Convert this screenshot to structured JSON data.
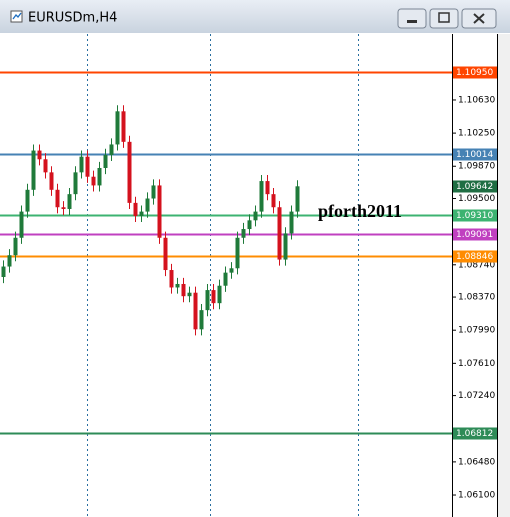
{
  "chart_data": {
    "type": "candlestick",
    "title": "EURUSDm,H4",
    "up_color": "#1f7a3a",
    "down_color": "#d4121e",
    "ylim": [
      1.05848,
      1.11375
    ],
    "yticks": [
      {
        "value": 1.1063,
        "label": "1.10630"
      },
      {
        "value": 1.1025,
        "label": "1.10250"
      },
      {
        "value": 1.0987,
        "label": "1.09870"
      },
      {
        "value": 1.095,
        "label": "1.09500"
      },
      {
        "value": 1.0874,
        "label": "1.08740"
      },
      {
        "value": 1.0837,
        "label": "1.08370"
      },
      {
        "value": 1.0799,
        "label": "1.07990"
      },
      {
        "value": 1.0761,
        "label": "1.07610"
      },
      {
        "value": 1.0724,
        "label": "1.07240"
      },
      {
        "value": 1.0648,
        "label": "1.06480"
      },
      {
        "value": 1.061,
        "label": "1.06100"
      }
    ],
    "levels": [
      {
        "value": 1.1095,
        "label": "1.10950",
        "color": "#ff4500"
      },
      {
        "value": 1.10014,
        "label": "1.10014",
        "color": "#4682b4"
      },
      {
        "value": 1.0931,
        "label": "1.09310",
        "color": "#3cb371"
      },
      {
        "value": 1.09091,
        "label": "1.09091",
        "color": "#c040c0"
      },
      {
        "value": 1.08846,
        "label": "1.08846",
        "color": "#ff8c00"
      },
      {
        "value": 1.06812,
        "label": "1.06812",
        "color": "#2e8b57"
      }
    ],
    "current_price": {
      "value": 1.09642,
      "label": "1.09642",
      "color": "#1f6e43"
    },
    "annotation": "pforth2011",
    "open": [
      1.086,
      1.0872,
      1.0885,
      1.0905,
      1.0935,
      1.096,
      1.1005,
      1.0995,
      1.098,
      1.096,
      1.094,
      1.0938,
      1.0955,
      1.098,
      1.0998,
      1.0975,
      1.0965,
      1.0985,
      1.1,
      1.1012,
      1.105,
      1.1015,
      1.0945,
      1.093,
      1.0935,
      1.095,
      1.0965,
      1.0905,
      1.0868,
      1.0848,
      1.0852,
      1.0838,
      1.0842,
      1.08,
      1.0822,
      1.0845,
      1.083,
      1.085,
      1.0865,
      1.087,
      1.0905,
      1.0915,
      1.0925,
      1.0935,
      1.097,
      1.0955,
      1.094,
      1.088,
      1.091,
      1.0935
    ],
    "high": [
      1.0879,
      1.0892,
      1.0912,
      1.0942,
      1.0967,
      1.1012,
      1.1012,
      1.1002,
      1.0987,
      1.0967,
      1.0947,
      1.0962,
      1.0987,
      1.1005,
      1.1005,
      1.0982,
      1.0992,
      1.1007,
      1.1019,
      1.1057,
      1.1057,
      1.1022,
      1.0952,
      1.0942,
      1.0957,
      1.0972,
      1.0972,
      1.0912,
      1.0875,
      1.0859,
      1.0859,
      1.0849,
      1.0849,
      1.0829,
      1.0852,
      1.0852,
      1.0857,
      1.0872,
      1.0877,
      1.0912,
      1.0922,
      1.0932,
      1.0942,
      1.0977,
      1.0977,
      1.0962,
      1.0947,
      1.0917,
      1.0942,
      1.0971
    ],
    "low": [
      1.0853,
      1.0865,
      1.0878,
      1.0898,
      1.0928,
      1.0953,
      1.0988,
      1.0973,
      1.0953,
      1.0933,
      1.0931,
      1.0931,
      1.0948,
      1.0973,
      1.0968,
      1.0958,
      1.0958,
      1.0978,
      1.0993,
      1.1005,
      1.1008,
      1.0938,
      1.0923,
      1.0923,
      1.0928,
      1.0943,
      1.0898,
      1.0861,
      1.0841,
      1.0841,
      1.0831,
      1.0831,
      1.0793,
      1.0793,
      1.0815,
      1.0823,
      1.0823,
      1.0843,
      1.0858,
      1.0863,
      1.0898,
      1.0908,
      1.0918,
      1.0928,
      1.0948,
      1.0933,
      1.0873,
      1.0873,
      1.0903,
      1.0928
    ],
    "close": [
      1.0872,
      1.0885,
      1.0905,
      1.0935,
      1.096,
      1.1005,
      1.0995,
      1.098,
      1.096,
      1.094,
      1.0938,
      1.0955,
      1.098,
      1.0998,
      1.0975,
      1.0965,
      1.0985,
      1.1,
      1.1012,
      1.105,
      1.1015,
      1.0945,
      1.093,
      1.0935,
      1.095,
      1.0965,
      1.0905,
      1.0868,
      1.0848,
      1.0852,
      1.0838,
      1.0842,
      1.08,
      1.0822,
      1.0845,
      1.083,
      1.085,
      1.0865,
      1.087,
      1.0905,
      1.0915,
      1.0925,
      1.0935,
      1.097,
      1.0955,
      1.094,
      1.088,
      1.091,
      1.0935,
      1.0964
    ]
  }
}
